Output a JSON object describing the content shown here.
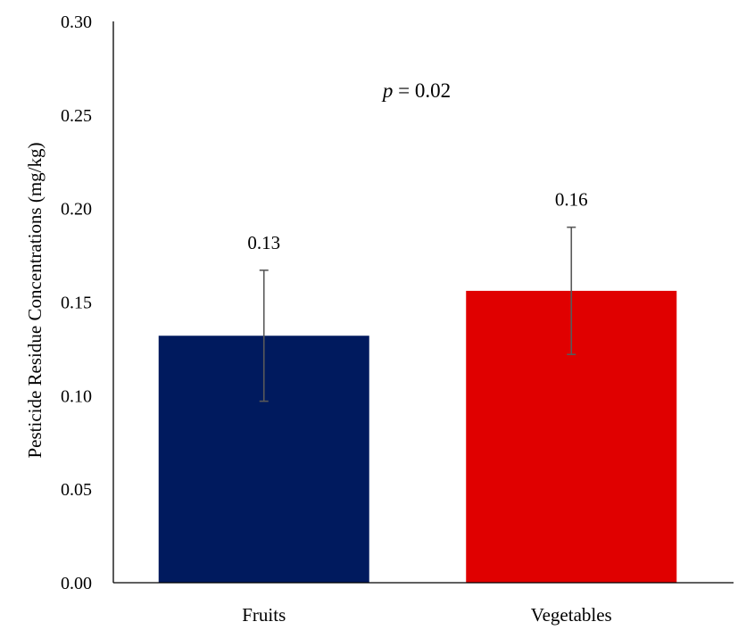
{
  "chart_data": {
    "type": "bar",
    "categories": [
      "Fruits",
      "Vegetables"
    ],
    "values": [
      0.132,
      0.156
    ],
    "error": [
      0.035,
      0.034
    ],
    "data_labels": [
      "0.13",
      "0.16"
    ],
    "bar_colors": [
      "#001A5E",
      "#E00000"
    ],
    "error_bar_color": "#595959",
    "ylabel": "Pesticide Residue Concentrations (mg/kg)",
    "ylim": [
      0,
      0.3
    ],
    "yticks": [
      0,
      0.05,
      0.1,
      0.15,
      0.2,
      0.25,
      0.3
    ],
    "ytick_labels": [
      "0.00",
      "0.05",
      "0.10",
      "0.15",
      "0.20",
      "0.25",
      "0.30"
    ],
    "grid": false,
    "annotation": {
      "symbol": "p",
      "text": " = 0.02"
    }
  }
}
